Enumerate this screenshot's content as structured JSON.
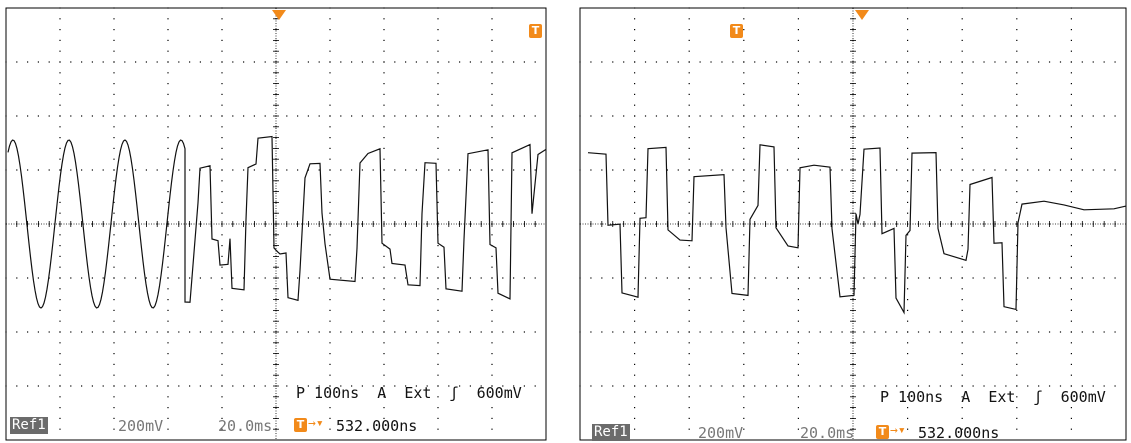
{
  "colors": {
    "trace": "#111111",
    "accent": "#f28a1a",
    "grid": "#000000",
    "badge": "#6b6b6b"
  },
  "scopes": [
    {
      "id": "left",
      "ref_label": "Ref1",
      "volts_div": "200mV",
      "time_div": "20.0ms",
      "trigger_flag": "T",
      "trigger_readout": "P 100ns  A  Ext  ʃ  600mV",
      "position_readout": "532.000ns"
    },
    {
      "id": "right",
      "ref_label": "Ref1",
      "volts_div": "200mV",
      "time_div": "20.0ms",
      "trigger_flag": "T",
      "trigger_readout": "P 100ns  A  Ext  ʃ  600mV",
      "position_readout": "532.000ns"
    }
  ],
  "icons": [
    "trigger-flag-icon",
    "trigger-position-arrow-icon",
    "trigger-marker-icon"
  ]
}
